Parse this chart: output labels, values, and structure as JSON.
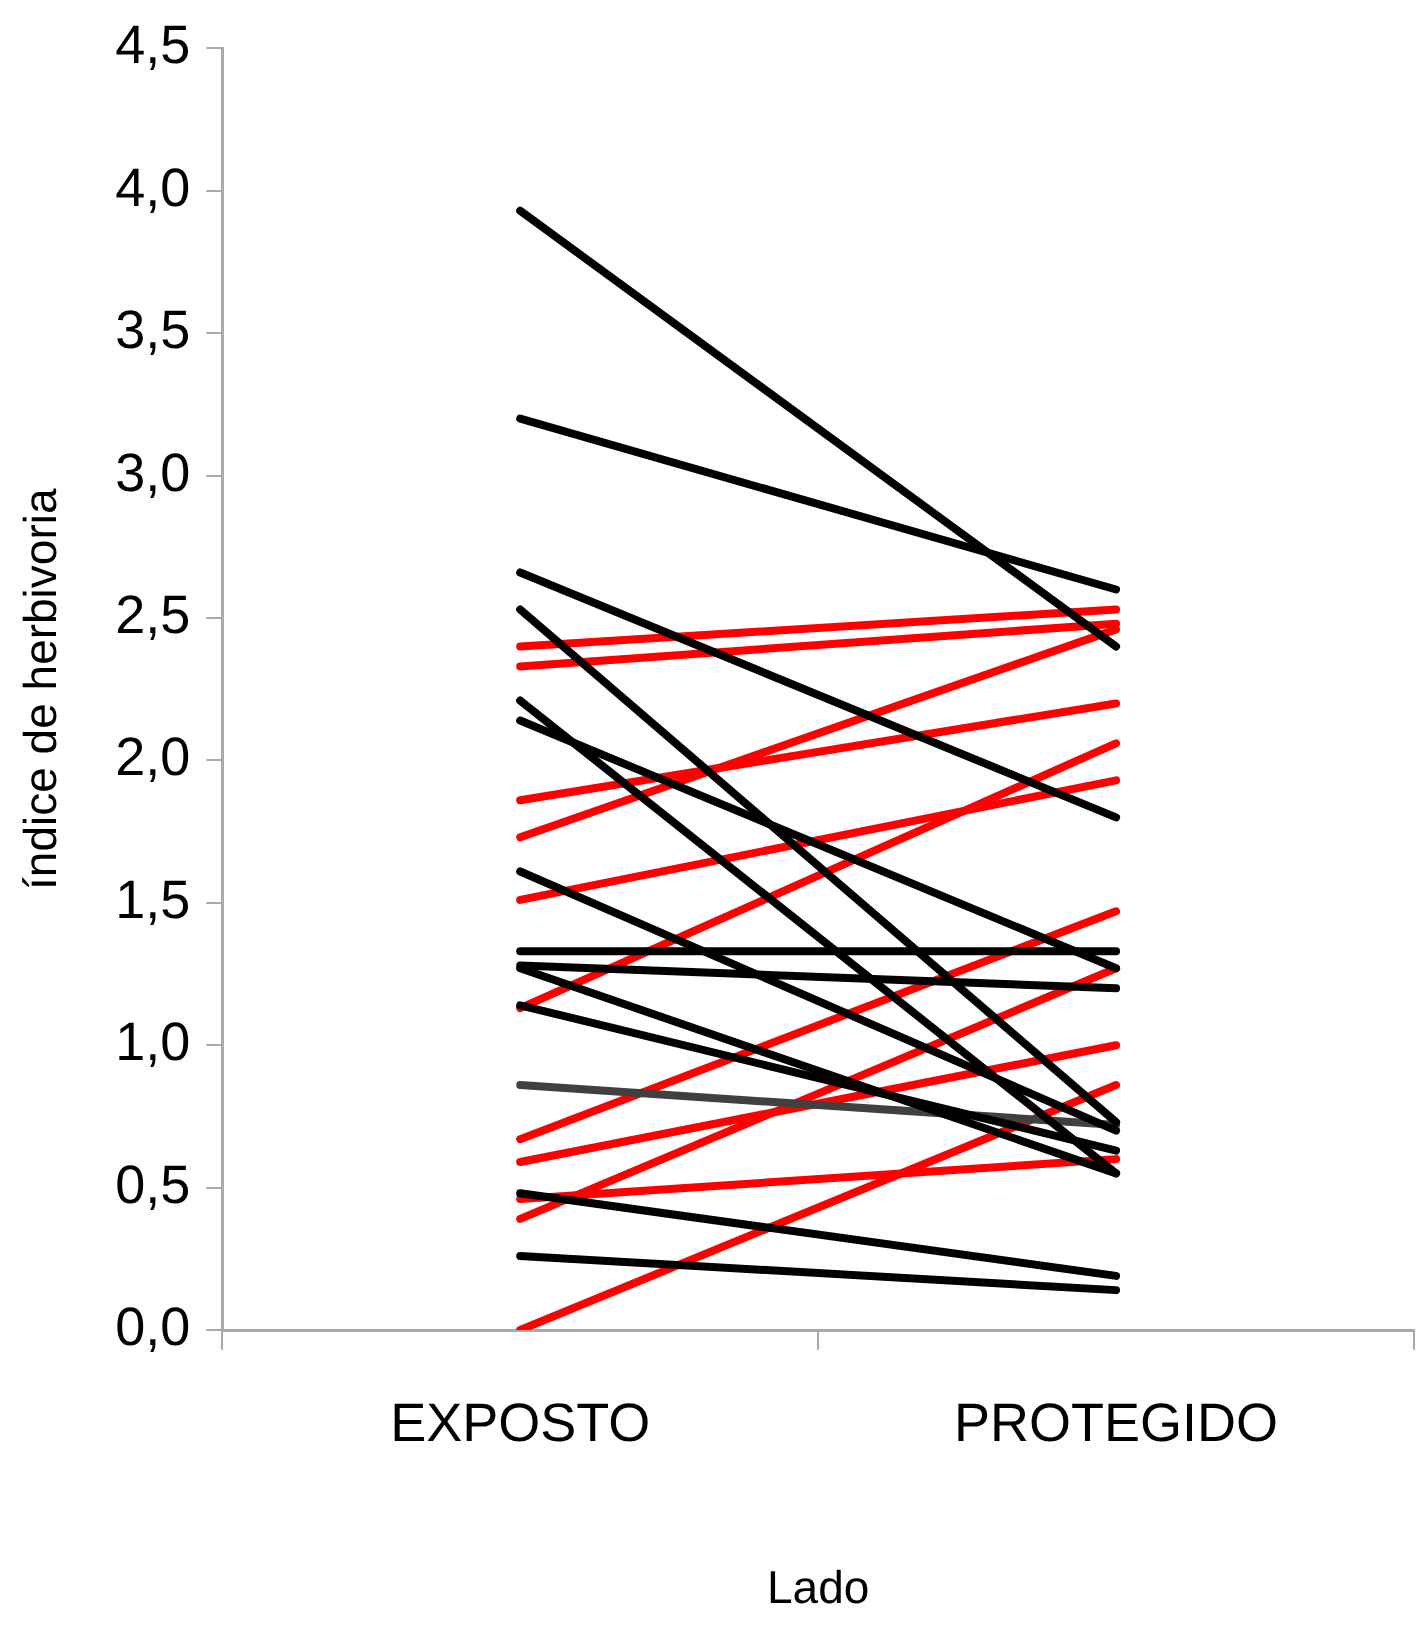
{
  "chart_data": {
    "type": "line",
    "xlabel": "Lado",
    "ylabel": "índice de herbivoria",
    "categories": [
      "EXPOSTO",
      "PROTEGIDO"
    ],
    "ylim": [
      0,
      4.5
    ],
    "yticks": [
      {
        "value": 0,
        "label": "0,0"
      },
      {
        "value": 0.5,
        "label": "0,5"
      },
      {
        "value": 1,
        "label": "1,0"
      },
      {
        "value": 1.5,
        "label": "1,5"
      },
      {
        "value": 2,
        "label": "2,0"
      },
      {
        "value": 2.5,
        "label": "2,5"
      },
      {
        "value": 3,
        "label": "3,0"
      },
      {
        "value": 3.5,
        "label": "3,5"
      },
      {
        "value": 4,
        "label": "4,0"
      },
      {
        "value": 4.5,
        "label": "4,5"
      }
    ],
    "grid": false,
    "legend": false,
    "marker": "none",
    "line_style": "solid",
    "series": [
      {
        "color": "#000000",
        "values": [
          3.93,
          2.4
        ]
      },
      {
        "color": "#000000",
        "values": [
          3.2,
          2.6
        ]
      },
      {
        "color": "#000000",
        "values": [
          2.66,
          1.8
        ]
      },
      {
        "color": "#000000",
        "values": [
          2.53,
          0.73
        ]
      },
      {
        "color": "#000000",
        "values": [
          2.21,
          0.55
        ]
      },
      {
        "color": "#000000",
        "values": [
          2.14,
          1.27
        ]
      },
      {
        "color": "#000000",
        "values": [
          1.61,
          0.7
        ]
      },
      {
        "color": "#000000",
        "values": [
          1.33,
          1.33
        ]
      },
      {
        "color": "#000000",
        "values": [
          1.28,
          1.2
        ]
      },
      {
        "color": "#000000",
        "values": [
          1.27,
          0.55
        ]
      },
      {
        "color": "#000000",
        "values": [
          1.14,
          0.63
        ]
      },
      {
        "color": "#404040",
        "values": [
          0.86,
          0.72
        ]
      },
      {
        "color": "#000000",
        "values": [
          0.48,
          0.19
        ]
      },
      {
        "color": "#000000",
        "values": [
          0.26,
          0.14
        ]
      },
      {
        "color": "#ff0000",
        "values": [
          2.4,
          2.53
        ]
      },
      {
        "color": "#ff0000",
        "values": [
          2.33,
          2.48
        ]
      },
      {
        "color": "#ff0000",
        "values": [
          1.86,
          2.2
        ]
      },
      {
        "color": "#ff0000",
        "values": [
          1.73,
          2.46
        ]
      },
      {
        "color": "#ff0000",
        "values": [
          1.51,
          1.93
        ]
      },
      {
        "color": "#ff0000",
        "values": [
          1.13,
          2.06
        ]
      },
      {
        "color": "#ff0000",
        "values": [
          0.67,
          1.47
        ]
      },
      {
        "color": "#ff0000",
        "values": [
          0.59,
          1.0
        ]
      },
      {
        "color": "#ff0000",
        "values": [
          0.46,
          0.6
        ]
      },
      {
        "color": "#ff0000",
        "values": [
          0.39,
          1.27
        ]
      },
      {
        "color": "#ff0000",
        "values": [
          0.0,
          0.86
        ]
      }
    ]
  }
}
